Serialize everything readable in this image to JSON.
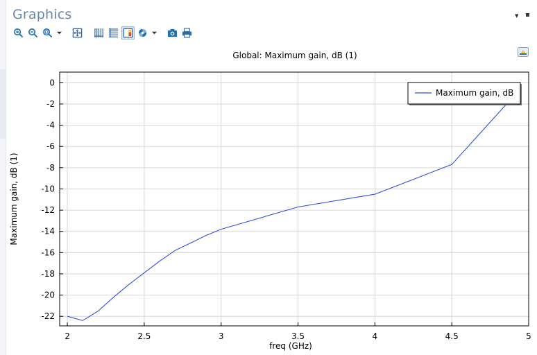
{
  "panel": {
    "title": "Graphics",
    "controls": [
      "▾",
      "▪"
    ]
  },
  "toolbar": {
    "icons": [
      "zoom-in-icon",
      "zoom-out-icon",
      "zoom-box-icon",
      "zoom-extents-icon",
      "grid-icon",
      "table-icon",
      "legend-icon",
      "scene-light-icon",
      "camera-icon",
      "print-icon"
    ]
  },
  "colors": {
    "series": "#2a4fe0",
    "grid": "#d6d6d6",
    "title_accent": "#6a86a8"
  },
  "chart_data": {
    "type": "line",
    "title": "Global: Maximum gain, dB (1)",
    "xlabel": "freq (GHz)",
    "ylabel": "Maximum gain, dB (1)",
    "xlim": [
      1.95,
      5.0
    ],
    "ylim": [
      -22.9,
      1.0
    ],
    "x_ticks": [
      2,
      2.5,
      3,
      3.5,
      4,
      4.5,
      5
    ],
    "x_tick_labels": [
      "2",
      "2.5",
      "3",
      "3.5",
      "4",
      "4.5",
      "5"
    ],
    "y_ticks": [
      0,
      -2,
      -4,
      -6,
      -8,
      -10,
      -12,
      -14,
      -16,
      -18,
      -20,
      -22
    ],
    "y_tick_labels": [
      "0",
      "-2",
      "-4",
      "-6",
      "-8",
      "-10",
      "-12",
      "-14",
      "-16",
      "-18",
      "-20",
      "-22"
    ],
    "grid": true,
    "legend_position": "top-right",
    "series": [
      {
        "name": "Maximum gain, dB",
        "x": [
          2.0,
          2.1,
          2.2,
          2.3,
          2.4,
          2.5,
          2.6,
          2.7,
          2.8,
          2.9,
          3.0,
          3.5,
          4.0,
          4.5,
          4.85
        ],
        "y": [
          -22.0,
          -22.4,
          -21.5,
          -20.2,
          -19.0,
          -17.9,
          -16.8,
          -15.8,
          -15.1,
          -14.4,
          -13.8,
          -11.7,
          -10.5,
          -7.7,
          -2.1
        ]
      }
    ]
  }
}
